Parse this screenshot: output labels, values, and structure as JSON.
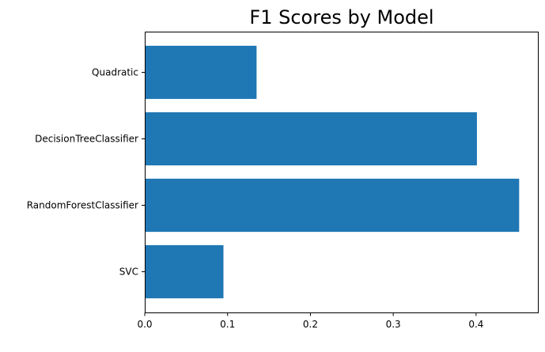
{
  "chart_data": {
    "type": "bar",
    "orientation": "horizontal",
    "title": "F1 Scores by Model",
    "xlabel": "",
    "ylabel": "",
    "categories": [
      "SVC",
      "RandomForestClassifier",
      "DecisionTreeClassifier",
      "Quadratic"
    ],
    "values": [
      0.095,
      0.452,
      0.401,
      0.135
    ],
    "xlim": [
      0,
      0.4746
    ],
    "xticks": [
      0.0,
      0.1,
      0.2,
      0.3,
      0.4
    ],
    "xtick_labels": [
      "0.0",
      "0.1",
      "0.2",
      "0.3",
      "0.4"
    ],
    "grid": false,
    "legend": "none",
    "bar_color": "#1f77b4"
  }
}
